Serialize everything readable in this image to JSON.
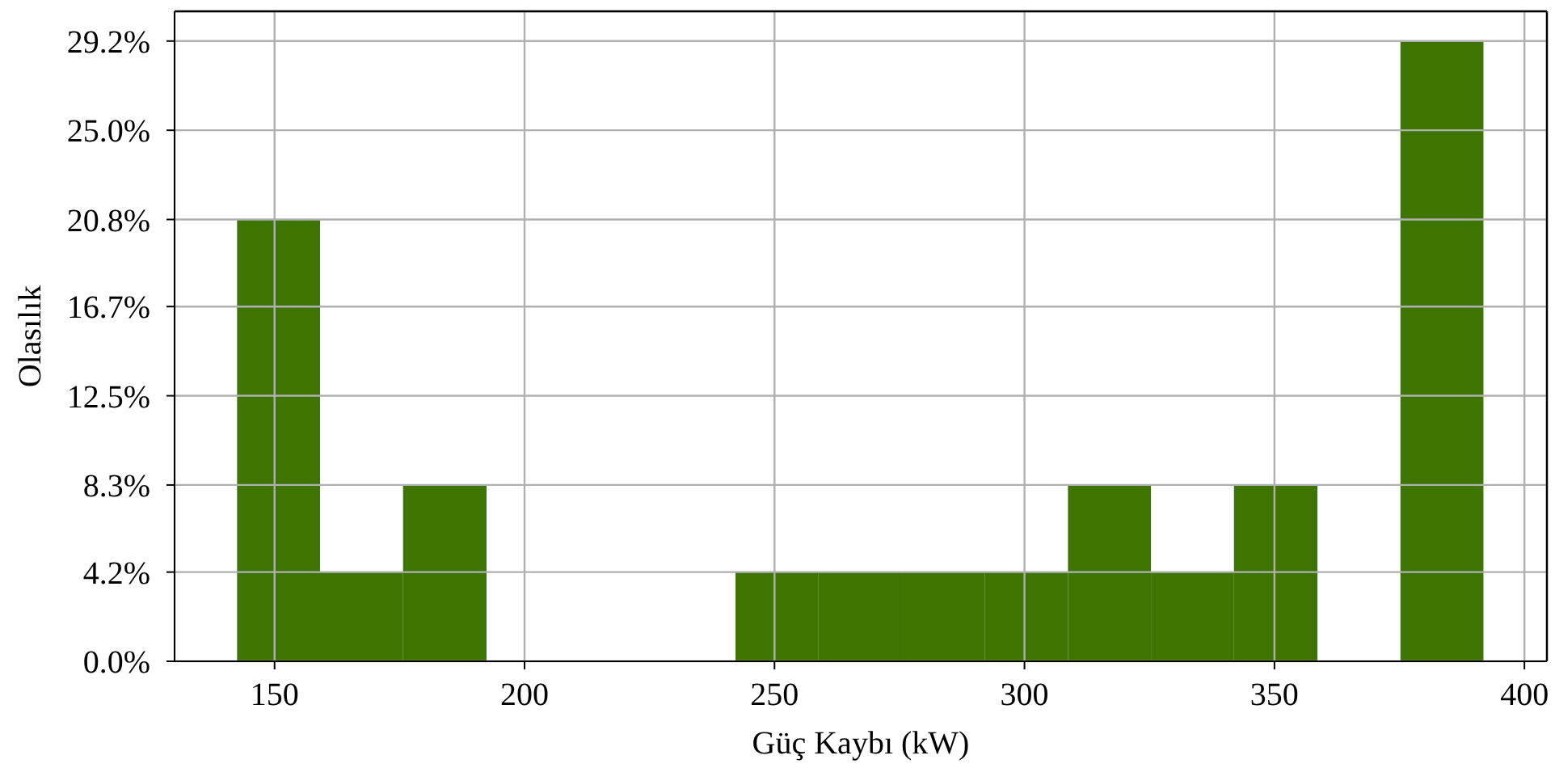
{
  "chart_data": {
    "type": "histogram",
    "xlabel": "Güç Kaybı (kW)",
    "ylabel": "Olasılık",
    "bins": [
      142.5,
      159.1,
      175.7,
      192.4,
      242.2,
      258.8,
      275.5,
      292.1,
      308.7,
      325.3,
      341.9,
      358.6,
      375.2,
      391.8
    ],
    "values": [
      20.8,
      4.2,
      8.3,
      0,
      4.2,
      4.2,
      4.2,
      4.2,
      8.3,
      4.2,
      8.3,
      0,
      29.2
    ],
    "color": "#3d7500",
    "xlim": [
      130,
      404.5
    ],
    "xticks": [
      150,
      200,
      250,
      300,
      350,
      400
    ],
    "ylim": [
      0,
      30.6
    ],
    "yticks": [
      {
        "value": 0,
        "label": "0.0%"
      },
      {
        "value": 4.2,
        "label": "4.2%"
      },
      {
        "value": 8.3,
        "label": "8.3%"
      },
      {
        "value": 12.5,
        "label": "12.5%"
      },
      {
        "value": 16.7,
        "label": "16.7%"
      },
      {
        "value": 20.8,
        "label": "20.8%"
      },
      {
        "value": 25.0,
        "label": "25.0%"
      },
      {
        "value": 29.2,
        "label": "29.2%"
      }
    ],
    "grid": true
  }
}
